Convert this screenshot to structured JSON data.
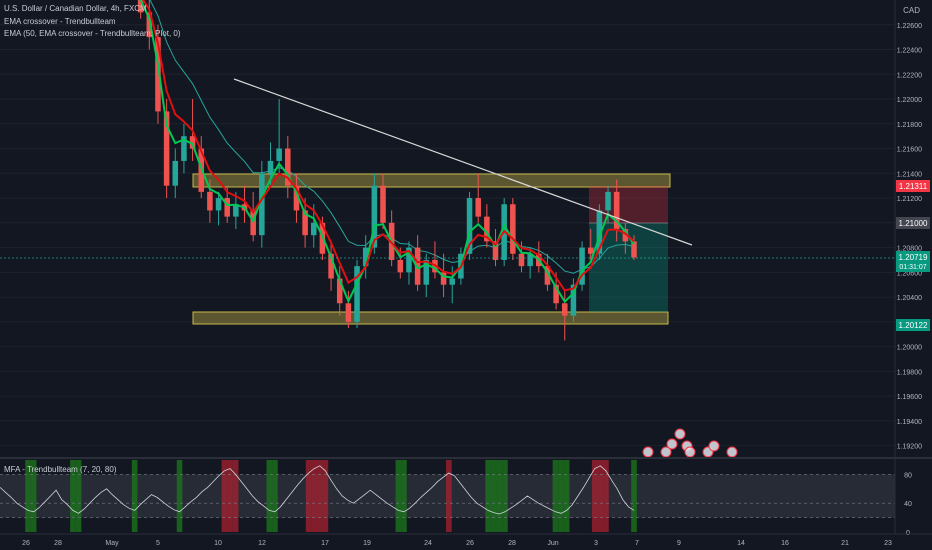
{
  "legend": {
    "symbol": "U.S. Dollar / Canadian Dollar, 4h, FXCM",
    "ind1": "EMA crossover - Trendbullteam",
    "ind2": "EMA (50, EMA crossover - Trendbullteam: Plot, 0)",
    "mfa": "MFA - Trendbullteam (7, 20, 80)"
  },
  "axis": {
    "currency": "CAD",
    "price_ticks": [
      "1.22600",
      "1.22400",
      "1.22200",
      "1.22000",
      "1.21800",
      "1.21600",
      "1.21400",
      "1.21200",
      "1.21000",
      "1.20800",
      "1.20600",
      "1.20400",
      "1.20200",
      "1.20000",
      "1.19800",
      "1.19600",
      "1.19400",
      "1.19200"
    ],
    "osc_ticks": [
      "80",
      "40",
      "0"
    ],
    "date_ticks": [
      "26",
      "28",
      "May",
      "5",
      "10",
      "12",
      "17",
      "19",
      "24",
      "26",
      "28",
      "Jun",
      "3",
      "7",
      "9",
      "14",
      "16",
      "21",
      "23"
    ]
  },
  "price_labels": {
    "upper": "1.21311",
    "mid": "1.21000",
    "current": "1.20719",
    "countdown": "01:31:07",
    "lower": "1.20122"
  },
  "colors": {
    "background": "#131722",
    "up": "#26a69a",
    "down": "#ef5350",
    "ema_fast": "#00c853",
    "ema_slow": "#e01010",
    "ema50": "#26a69a",
    "zone": "#b5a642",
    "trendline": "#d8d8d8",
    "short_risk": "#f23645",
    "short_target": "#089981"
  },
  "chart_data": [
    {
      "type": "candlestick",
      "title": "U.S. Dollar / Canadian Dollar, 4h, FXCM",
      "ylim": [
        1.191,
        1.228
      ],
      "ohlc": [
        [
          1.23,
          1.232,
          1.228,
          1.229
        ],
        [
          1.229,
          1.231,
          1.2265,
          1.227
        ],
        [
          1.227,
          1.2285,
          1.224,
          1.225
        ],
        [
          1.225,
          1.226,
          1.218,
          1.219
        ],
        [
          1.219,
          1.22,
          1.212,
          1.213
        ],
        [
          1.213,
          1.216,
          1.212,
          1.215
        ],
        [
          1.215,
          1.218,
          1.214,
          1.217
        ],
        [
          1.217,
          1.22,
          1.215,
          1.216
        ],
        [
          1.216,
          1.217,
          1.212,
          1.2125
        ],
        [
          1.2125,
          1.2135,
          1.21,
          1.211
        ],
        [
          1.211,
          1.2125,
          1.2098,
          1.212
        ],
        [
          1.212,
          1.213,
          1.21,
          1.2105
        ],
        [
          1.2105,
          1.2125,
          1.2095,
          1.2115
        ],
        [
          1.2115,
          1.213,
          1.21,
          1.211
        ],
        [
          1.211,
          1.2125,
          1.2085,
          1.209
        ],
        [
          1.209,
          1.215,
          1.208,
          1.214
        ],
        [
          1.214,
          1.2165,
          1.213,
          1.215
        ],
        [
          1.215,
          1.22,
          1.214,
          1.216
        ],
        [
          1.216,
          1.217,
          1.212,
          1.213
        ],
        [
          1.213,
          1.214,
          1.21,
          1.211
        ],
        [
          1.211,
          1.212,
          1.208,
          1.209
        ],
        [
          1.209,
          1.2115,
          1.208,
          1.21
        ],
        [
          1.21,
          1.2105,
          1.207,
          1.2075
        ],
        [
          1.2075,
          1.2085,
          1.2045,
          1.2055
        ],
        [
          1.2055,
          1.2065,
          1.2025,
          1.2035
        ],
        [
          1.2035,
          1.2045,
          1.2015,
          1.202
        ],
        [
          1.202,
          1.207,
          1.2015,
          1.2065
        ],
        [
          1.2065,
          1.209,
          1.2055,
          1.208
        ],
        [
          1.208,
          1.214,
          1.2075,
          1.213
        ],
        [
          1.213,
          1.214,
          1.2095,
          1.21
        ],
        [
          1.21,
          1.211,
          1.2065,
          1.207
        ],
        [
          1.207,
          1.208,
          1.2055,
          1.206
        ],
        [
          1.206,
          1.2085,
          1.205,
          1.208
        ],
        [
          1.208,
          1.209,
          1.2045,
          1.205
        ],
        [
          1.205,
          1.2075,
          1.204,
          1.207
        ],
        [
          1.207,
          1.2085,
          1.2055,
          1.206
        ],
        [
          1.206,
          1.2075,
          1.204,
          1.205
        ],
        [
          1.205,
          1.2065,
          1.2035,
          1.2055
        ],
        [
          1.2055,
          1.208,
          1.205,
          1.2075
        ],
        [
          1.2075,
          1.2125,
          1.207,
          1.212
        ],
        [
          1.212,
          1.214,
          1.21,
          1.2105
        ],
        [
          1.2105,
          1.2115,
          1.208,
          1.2085
        ],
        [
          1.2085,
          1.2095,
          1.2065,
          1.207
        ],
        [
          1.207,
          1.212,
          1.2065,
          1.2115
        ],
        [
          1.2115,
          1.212,
          1.207,
          1.2075
        ],
        [
          1.2075,
          1.2085,
          1.206,
          1.2065
        ],
        [
          1.2065,
          1.208,
          1.2055,
          1.2075
        ],
        [
          1.2075,
          1.2085,
          1.206,
          1.2065
        ],
        [
          1.2065,
          1.2075,
          1.2045,
          1.205
        ],
        [
          1.205,
          1.206,
          1.203,
          1.2035
        ],
        [
          1.2035,
          1.2045,
          1.2005,
          1.2025
        ],
        [
          1.2025,
          1.2055,
          1.202,
          1.205
        ],
        [
          1.205,
          1.2085,
          1.2045,
          1.208
        ],
        [
          1.208,
          1.2095,
          1.207,
          1.2075
        ],
        [
          1.2075,
          1.2115,
          1.207,
          1.211
        ],
        [
          1.211,
          1.213,
          1.21,
          1.2125
        ],
        [
          1.2125,
          1.2135,
          1.2085,
          1.2095
        ],
        [
          1.2095,
          1.21,
          1.2075,
          1.2085
        ],
        [
          1.2085,
          1.209,
          1.207,
          1.2072
        ]
      ]
    },
    {
      "type": "line",
      "title": "MFA - Trendbullteam (7, 20, 80)",
      "ylim": [
        0,
        100
      ],
      "levels": [
        20,
        40,
        80
      ],
      "values": [
        62,
        55,
        48,
        40,
        35,
        30,
        28,
        34,
        42,
        50,
        58,
        45,
        38,
        30,
        26,
        32,
        40,
        48,
        55,
        60,
        52,
        45,
        38,
        33,
        30,
        38,
        45,
        52,
        48,
        42,
        36,
        31,
        28,
        35,
        42,
        48,
        56,
        62,
        70,
        78,
        85,
        88,
        80,
        70,
        60,
        50,
        42,
        36,
        30,
        28,
        35,
        45,
        55,
        65,
        74,
        82,
        88,
        92,
        85,
        72,
        60,
        50,
        44,
        40,
        46,
        52,
        58,
        52,
        46,
        40,
        35,
        30,
        28,
        33,
        40,
        48,
        55,
        62,
        70,
        76,
        82,
        78,
        68,
        58,
        48,
        40,
        35,
        30,
        27,
        25,
        28,
        33,
        38,
        44,
        50,
        45,
        40,
        36,
        32,
        28,
        26,
        30,
        38,
        50,
        62,
        75,
        88,
        92,
        85,
        72,
        60,
        45,
        35,
        30
      ]
    }
  ]
}
